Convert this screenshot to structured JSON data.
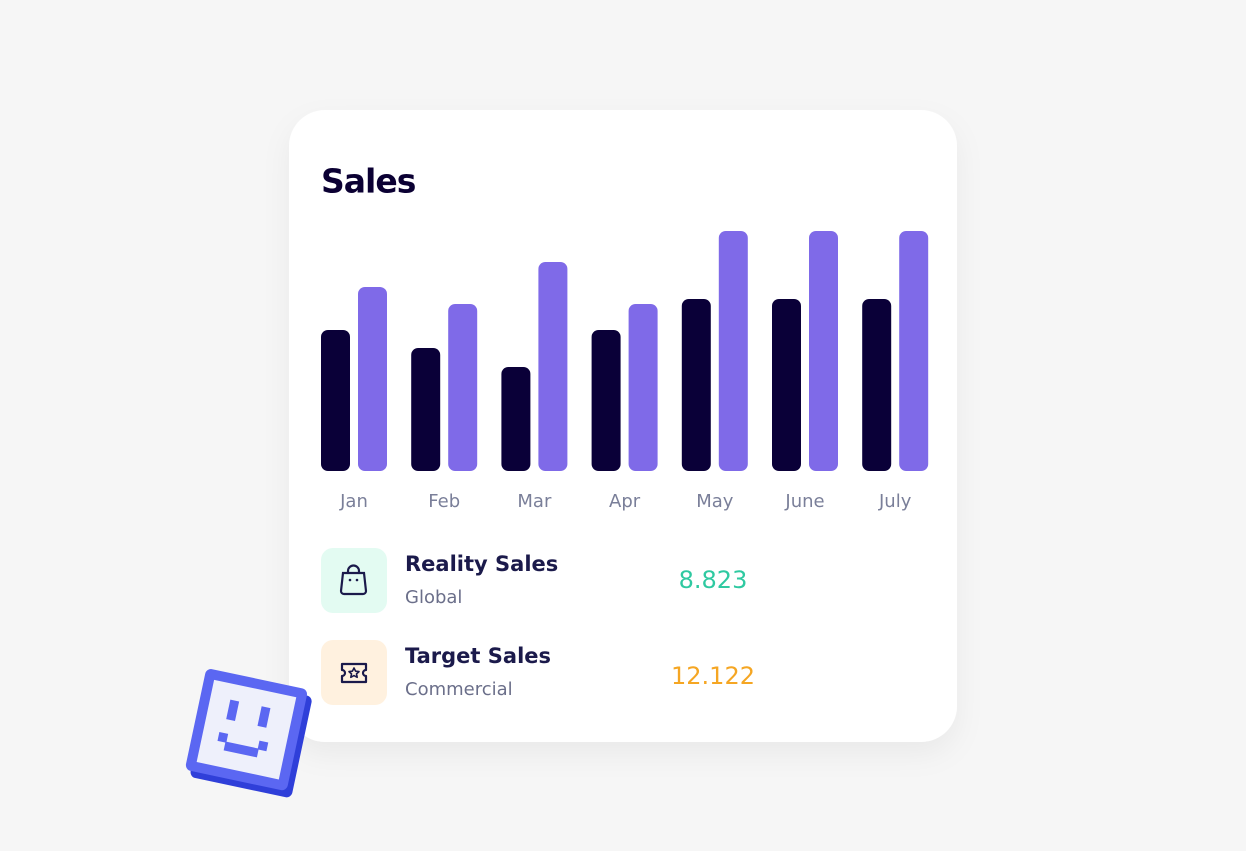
{
  "header": {
    "title": "Sales"
  },
  "chart_data": {
    "type": "bar",
    "categories": [
      "Jan",
      "Feb",
      "Mar",
      "Apr",
      "May",
      "June",
      "July"
    ],
    "series": [
      {
        "color": "#0a0038",
        "values": [
          141,
          123,
          104,
          141,
          172,
          172,
          172
        ]
      },
      {
        "color": "#7f6ae8",
        "values": [
          184,
          167,
          209,
          167,
          240,
          240,
          240
        ]
      }
    ],
    "ylim": [
      0,
      240
    ]
  },
  "summary": [
    {
      "title": "Reality Sales",
      "subtitle": "Global",
      "value": "8.823"
    },
    {
      "title": "Target Sales",
      "subtitle": "Commercial",
      "value": "12.122"
    }
  ]
}
